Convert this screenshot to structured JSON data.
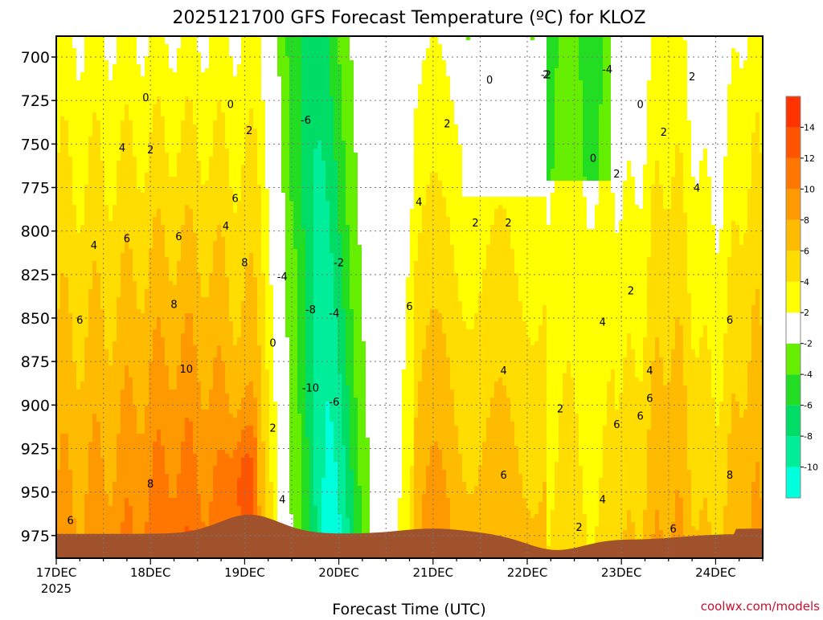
{
  "chart_data": {
    "type": "heatmap",
    "title": "2025121700 GFS Forecast Temperature (ºC) for KLOZ",
    "xlabel": "Forecast Time (UTC)",
    "ylabel": "",
    "credit": "coolwx.com/models",
    "x_ticks": [
      "17DEC",
      "18DEC",
      "19DEC",
      "20DEC",
      "21DEC",
      "22DEC",
      "23DEC",
      "24DEC"
    ],
    "x_tick_year": "2025",
    "y_ticks": [
      700,
      725,
      750,
      775,
      800,
      825,
      850,
      875,
      900,
      925,
      950,
      975
    ],
    "ylim": [
      988,
      688
    ],
    "xlim_days": [
      0,
      7.5
    ],
    "grid": true,
    "colorbar": {
      "levels": [
        -12,
        -10,
        -8,
        -6,
        -4,
        -2,
        2,
        4,
        6,
        8,
        10,
        12,
        14,
        16
      ],
      "labels": [
        "-10",
        "-8",
        "-6",
        "-4",
        "-2",
        "2",
        "4",
        "6",
        "8",
        "10",
        "12",
        "14"
      ],
      "colors": [
        "#00ffdd",
        "#00ee99",
        "#00dd66",
        "#22dd22",
        "#66ee00",
        "#ffffff",
        "#ffff00",
        "#ffdd00",
        "#ffbb00",
        "#ff9900",
        "#ff7700",
        "#ff5500",
        "#ff3300"
      ]
    },
    "contour_labels": [
      {
        "t": "0",
        "day": 0.95,
        "p": 723
      },
      {
        "t": "0",
        "day": 1.85,
        "p": 727
      },
      {
        "t": "0",
        "day": 4.6,
        "p": 713
      },
      {
        "t": "0",
        "day": 6.2,
        "p": 727
      },
      {
        "t": "0",
        "day": 5.7,
        "p": 758
      },
      {
        "t": "0",
        "day": 2.3,
        "p": 864
      },
      {
        "t": "2",
        "day": 1.0,
        "p": 753
      },
      {
        "t": "2",
        "day": 2.05,
        "p": 742
      },
      {
        "t": "2",
        "day": 4.15,
        "p": 738
      },
      {
        "t": "2",
        "day": 4.45,
        "p": 795
      },
      {
        "t": "2",
        "day": 4.8,
        "p": 795
      },
      {
        "t": "2",
        "day": 5.2,
        "p": 710
      },
      {
        "t": "2",
        "day": 5.95,
        "p": 767
      },
      {
        "t": "2",
        "day": 6.45,
        "p": 743
      },
      {
        "t": "2",
        "day": 6.75,
        "p": 711
      },
      {
        "t": "2",
        "day": 6.1,
        "p": 834
      },
      {
        "t": "2",
        "day": 5.35,
        "p": 902
      },
      {
        "t": "2",
        "day": 5.55,
        "p": 970
      },
      {
        "t": "2",
        "day": 2.3,
        "p": 913
      },
      {
        "t": "4",
        "day": 0.7,
        "p": 752
      },
      {
        "t": "4",
        "day": 0.4,
        "p": 808
      },
      {
        "t": "4",
        "day": 1.8,
        "p": 797
      },
      {
        "t": "4",
        "day": 3.85,
        "p": 783
      },
      {
        "t": "4",
        "day": 4.75,
        "p": 880
      },
      {
        "t": "4",
        "day": 5.8,
        "p": 852
      },
      {
        "t": "4",
        "day": 6.3,
        "p": 880
      },
      {
        "t": "4",
        "day": 6.8,
        "p": 775
      },
      {
        "t": "4",
        "day": 5.8,
        "p": 954
      },
      {
        "t": "4",
        "day": 2.4,
        "p": 954
      },
      {
        "t": "6",
        "day": 0.25,
        "p": 851
      },
      {
        "t": "6",
        "day": 0.75,
        "p": 804
      },
      {
        "t": "6",
        "day": 1.3,
        "p": 803
      },
      {
        "t": "6",
        "day": 1.9,
        "p": 781
      },
      {
        "t": "6",
        "day": 3.75,
        "p": 843
      },
      {
        "t": "6",
        "day": 4.75,
        "p": 940
      },
      {
        "t": "6",
        "day": 5.95,
        "p": 911
      },
      {
        "t": "6",
        "day": 6.2,
        "p": 906
      },
      {
        "t": "6",
        "day": 6.3,
        "p": 896
      },
      {
        "t": "6",
        "day": 7.15,
        "p": 851
      },
      {
        "t": "6",
        "day": 6.55,
        "p": 971
      },
      {
        "t": "6",
        "day": 0.15,
        "p": 966
      },
      {
        "t": "8",
        "day": 1.25,
        "p": 842
      },
      {
        "t": "8",
        "day": 2.0,
        "p": 818
      },
      {
        "t": "8",
        "day": 1.0,
        "p": 945
      },
      {
        "t": "8",
        "day": 7.15,
        "p": 940
      },
      {
        "t": "10",
        "day": 1.38,
        "p": 879
      },
      {
        "t": "-2",
        "day": 3.0,
        "p": 818
      },
      {
        "t": "-2",
        "day": 5.2,
        "p": 710
      },
      {
        "t": "-4",
        "day": 2.4,
        "p": 826
      },
      {
        "t": "-4",
        "day": 2.95,
        "p": 847
      },
      {
        "t": "-4",
        "day": 5.85,
        "p": 707
      },
      {
        "t": "-6",
        "day": 2.65,
        "p": 736
      },
      {
        "t": "-6",
        "day": 2.95,
        "p": 898
      },
      {
        "t": "-8",
        "day": 2.7,
        "p": 845
      },
      {
        "t": "-10",
        "day": 2.7,
        "p": 890
      }
    ]
  }
}
